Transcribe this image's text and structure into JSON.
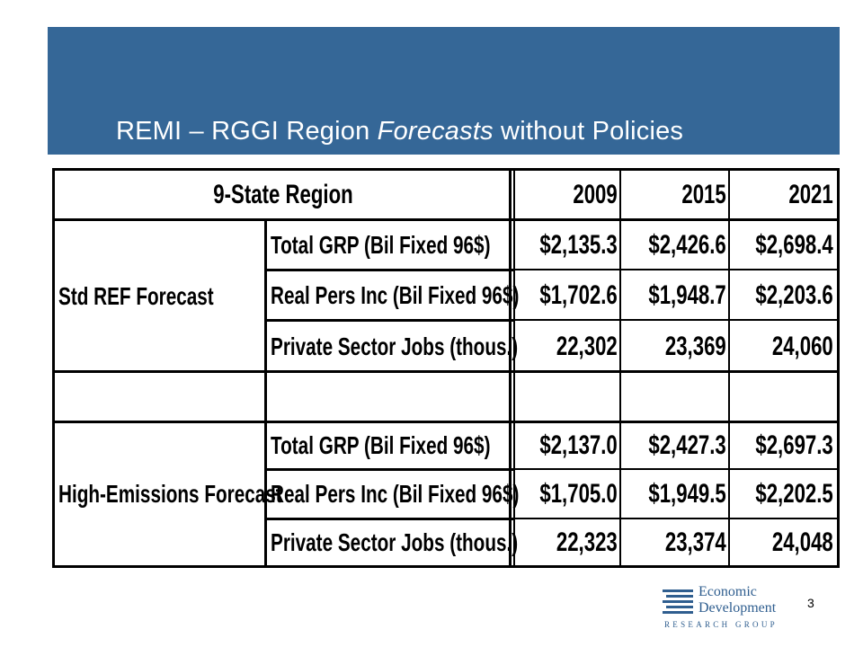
{
  "slide": {
    "title_pre": "REMI – RGGI Region ",
    "title_em": "Forecasts",
    "title_post": " without Policies",
    "page_number": "3"
  },
  "table": {
    "header": {
      "region": "9-State Region",
      "years": [
        "2009",
        "2015",
        "2021"
      ]
    },
    "groups": [
      {
        "label": "Std REF Forecast",
        "rows": [
          {
            "metric": "Total GRP (Bil Fixed 96$)",
            "values": [
              "$2,135.3",
              "$2,426.6",
              "$2,698.4"
            ]
          },
          {
            "metric": "Real Pers Inc (Bil Fixed 96$)",
            "values": [
              "$1,702.6",
              "$1,948.7",
              "$2,203.6"
            ]
          },
          {
            "metric": "Private Sector Jobs (thous.)",
            "values": [
              "22,302",
              "23,369",
              "24,060"
            ]
          }
        ]
      },
      {
        "label": "High-Emissions Forecast",
        "rows": [
          {
            "metric": "Total GRP (Bil Fixed 96$)",
            "values": [
              "$2,137.0",
              "$2,427.3",
              "$2,697.3"
            ]
          },
          {
            "metric": "Real Pers Inc (Bil Fixed 96$)",
            "values": [
              "$1,705.0",
              "$1,949.5",
              "$2,202.5"
            ]
          },
          {
            "metric": "Private Sector Jobs (thous.)",
            "values": [
              "22,323",
              "23,374",
              "24,048"
            ]
          }
        ]
      }
    ]
  },
  "logo": {
    "line1": "Economic",
    "line2": "Development",
    "line3": "RESEARCH GROUP",
    "color": "#2f5e8f"
  },
  "colors": {
    "banner": "#356797"
  }
}
